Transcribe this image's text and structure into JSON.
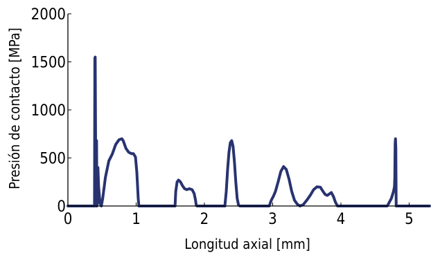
{
  "chart_data": {
    "type": "line",
    "xlabel": "Longitud axial [mm]",
    "ylabel": "Presión de contacto [MPa]",
    "xlim": [
      0,
      5.3
    ],
    "ylim": [
      0,
      2000
    ],
    "xticks": [
      "0",
      "1",
      "2",
      "3",
      "4",
      "5"
    ],
    "yticks": [
      "0",
      "500",
      "1000",
      "1500",
      "2000"
    ],
    "grid": false,
    "line_color": "#283370",
    "series": [
      {
        "x": [
          0,
          0.39,
          0.395,
          0.4,
          0.405,
          0.41,
          0.42,
          0.425,
          0.43,
          0.44,
          0.45,
          0.47,
          0.49,
          0.51,
          0.55,
          0.6,
          0.65,
          0.7,
          0.75,
          0.79,
          0.81,
          0.85,
          0.89,
          0.93,
          0.96,
          0.99,
          1.01,
          1.03,
          1.04,
          1.05,
          1.57,
          1.58,
          1.6,
          1.62,
          1.65,
          1.68,
          1.71,
          1.74,
          1.78,
          1.82,
          1.85,
          1.87,
          1.88,
          1.89,
          2.3,
          2.32,
          2.34,
          2.36,
          2.38,
          2.4,
          2.42,
          2.44,
          2.46,
          2.48,
          2.5,
          2.52,
          2.95,
          2.98,
          3.01,
          3.04,
          3.08,
          3.12,
          3.16,
          3.2,
          3.24,
          3.28,
          3.32,
          3.36,
          3.4,
          3.45,
          3.5,
          3.55,
          3.6,
          3.65,
          3.7,
          3.74,
          3.77,
          3.8,
          3.83,
          3.86,
          3.89,
          3.92,
          3.95,
          4.68,
          4.71,
          4.74,
          4.77,
          4.785,
          4.79,
          4.795,
          4.8,
          4.805,
          4.81,
          5.3
        ],
        "y": [
          0,
          0,
          1540,
          1550,
          800,
          0,
          680,
          0,
          20,
          400,
          200,
          30,
          0,
          80,
          300,
          470,
          540,
          640,
          690,
          700,
          680,
          600,
          560,
          545,
          545,
          510,
          350,
          80,
          0,
          0,
          0,
          150,
          250,
          270,
          250,
          210,
          180,
          170,
          180,
          170,
          130,
          60,
          10,
          0,
          0,
          150,
          380,
          560,
          660,
          680,
          620,
          460,
          250,
          80,
          10,
          0,
          0,
          60,
          100,
          150,
          250,
          360,
          410,
          380,
          280,
          150,
          60,
          20,
          0,
          15,
          60,
          110,
          170,
          200,
          195,
          150,
          120,
          110,
          125,
          140,
          100,
          40,
          0,
          0,
          40,
          80,
          150,
          200,
          300,
          650,
          700,
          600,
          0,
          0
        ]
      }
    ]
  }
}
